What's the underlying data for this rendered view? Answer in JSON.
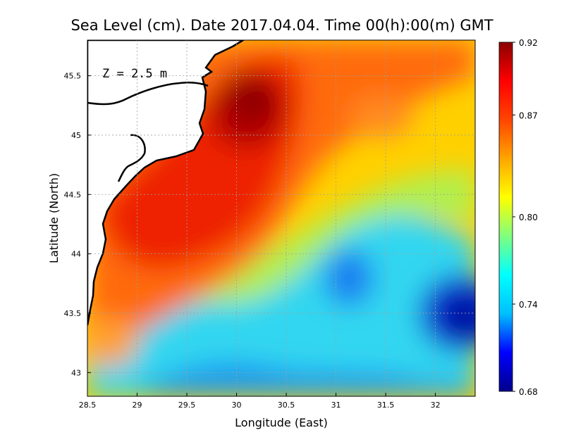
{
  "chart_data": {
    "type": "heatmap",
    "title": "Sea Level (cm). Date 2017.04.04. Time 00(h):00(m) GMT",
    "xlabel": "Longitude (East)",
    "ylabel": "Latitude (North)",
    "annotation": "Z = 2.5 m",
    "xlim": [
      28.5,
      32.4
    ],
    "ylim": [
      42.8,
      45.8
    ],
    "x_ticks": [
      28.5,
      29,
      29.5,
      30,
      30.5,
      31,
      31.5,
      32
    ],
    "x_tick_labels": [
      "28.5",
      "29",
      "29.5",
      "30",
      "30.5",
      "31",
      "31.5",
      "32"
    ],
    "y_ticks": [
      43,
      43.5,
      44,
      44.5,
      45,
      45.5
    ],
    "y_tick_labels": [
      "43",
      "43.5",
      "44",
      "44.5",
      "45",
      "45.5"
    ],
    "grid": true,
    "colorbar": {
      "min": 0.68,
      "max": 0.92,
      "ticks": [
        0.68,
        0.74,
        0.8,
        0.87,
        0.92
      ],
      "tick_labels": [
        "0.68",
        "0.74",
        "0.80",
        "0.87",
        "0.92"
      ],
      "colors": [
        "#00008b",
        "#0000ff",
        "#00bfff",
        "#00ffff",
        "#7fff7f",
        "#ffff00",
        "#ffa500",
        "#ff4500",
        "#ff0000",
        "#8b0000"
      ]
    },
    "features": [
      {
        "name": "maximum",
        "lon": 30.2,
        "lat": 45.3,
        "value": 0.92
      },
      {
        "name": "high-coastal-band",
        "lon": 29.6,
        "lat": 44.3,
        "value": 0.89
      },
      {
        "name": "minimum-east",
        "lon": 32.3,
        "lat": 43.4,
        "value": 0.7
      },
      {
        "name": "low-center",
        "lon": 31.1,
        "lat": 43.75,
        "value": 0.74
      },
      {
        "name": "low-south",
        "lon": 30.0,
        "lat": 42.9,
        "value": 0.76
      }
    ]
  }
}
